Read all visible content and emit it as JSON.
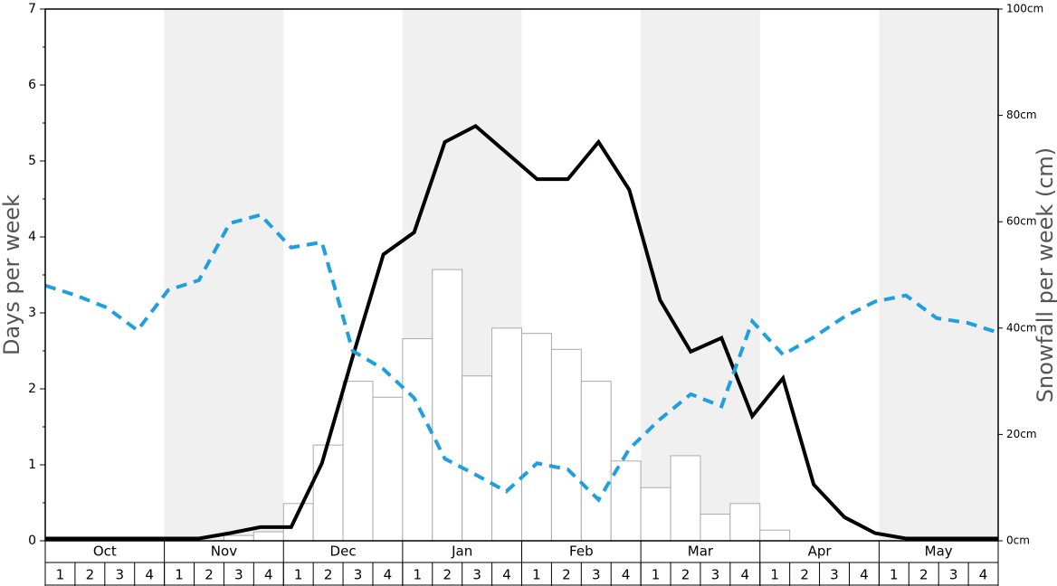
{
  "chart_data": {
    "type": "combo",
    "ylabel": "Days per week",
    "y2label": "Snowfall per week (cm)",
    "months": [
      "Oct",
      "Nov",
      "Dec",
      "Jan",
      "Feb",
      "Mar",
      "Apr",
      "May"
    ],
    "categories": [
      "1",
      "2",
      "3",
      "4",
      "1",
      "2",
      "3",
      "4",
      "1",
      "2",
      "3",
      "4",
      "1",
      "2",
      "3",
      "4",
      "1",
      "2",
      "3",
      "4",
      "1",
      "2",
      "3",
      "4",
      "1",
      "2",
      "3",
      "4",
      "1",
      "2",
      "3",
      "4"
    ],
    "ylim": [
      0,
      7
    ],
    "yticks": [
      0,
      1,
      2,
      3,
      4,
      5,
      6,
      7
    ],
    "minor_yticks": [
      0.5,
      1.5,
      2.5,
      3.5,
      4.5,
      5.5,
      6.5
    ],
    "y2lim": [
      0,
      100
    ],
    "y2ticks": [
      {
        "value": 0,
        "label": "0cm"
      },
      {
        "value": 20,
        "label": "20cm"
      },
      {
        "value": 40,
        "label": "40cm"
      },
      {
        "value": 60,
        "label": "60cm"
      },
      {
        "value": 80,
        "label": "80cm"
      },
      {
        "value": 100,
        "label": "100cm"
      }
    ],
    "shade_color": "#f0f0f0",
    "series": [
      {
        "type": "bar",
        "axis": "y2",
        "color": "#ffffff",
        "stroke": "#aaaaaa",
        "values": [
          0,
          0,
          0,
          0,
          0,
          0,
          1,
          1.7,
          7,
          18,
          30,
          27,
          38,
          51,
          31,
          40,
          39,
          36,
          30,
          15,
          10,
          16,
          5,
          7,
          2,
          0,
          0,
          0,
          0,
          0,
          0,
          0
        ]
      },
      {
        "type": "line",
        "color": "#000000",
        "dashed": false,
        "values": [
          0.03,
          0.03,
          0.03,
          0.03,
          0.03,
          0.03,
          0.1,
          0.18,
          0.18,
          1.02,
          2.42,
          3.77,
          4.06,
          5.25,
          5.46,
          5.11,
          4.76,
          4.76,
          5.25,
          4.62,
          3.17,
          2.49,
          2.67,
          1.64,
          2.14,
          0.74,
          0.31,
          0.1,
          0.03,
          0.03,
          0.03,
          0.03
        ]
      },
      {
        "type": "line",
        "color": "#1ea0e0",
        "dashed": true,
        "values": [
          3.36,
          3.23,
          3.07,
          2.77,
          3.3,
          3.43,
          4.18,
          4.29,
          3.86,
          3.93,
          2.5,
          2.26,
          1.88,
          1.08,
          0.87,
          0.65,
          1.02,
          0.94,
          0.54,
          1.21,
          1.6,
          1.93,
          1.77,
          2.89,
          2.45,
          2.68,
          2.95,
          3.15,
          3.23,
          2.93,
          2.87,
          2.74
        ]
      }
    ]
  }
}
